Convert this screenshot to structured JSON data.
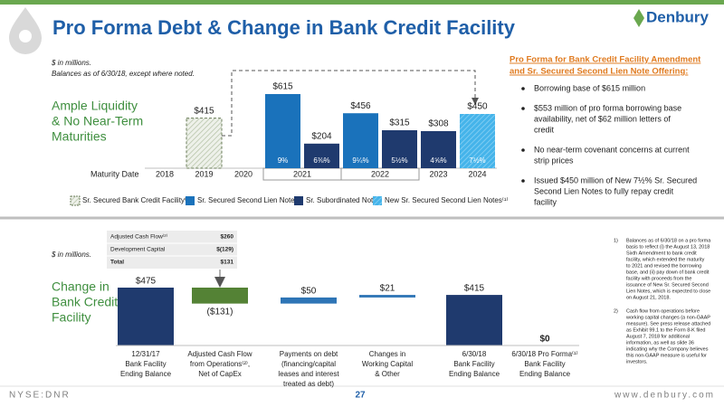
{
  "header": {
    "title": "Pro Forma Debt & Change in Bank Credit Facility",
    "logo": "Denbury",
    "ticker": "NYSE:DNR",
    "page": "27",
    "website": "www.denbury.com"
  },
  "chart_data": [
    {
      "type": "bar",
      "notes": [
        "$ in millions.",
        "Balances as of 6/30/18, except where noted."
      ],
      "side_label": [
        "Ample Liquidity",
        "& No Near-Term",
        "Maturities"
      ],
      "x_label": "Maturity Date",
      "categories": [
        "2018",
        "2019",
        "2020",
        "2021",
        "2022",
        "2023",
        "2024"
      ],
      "series": [
        {
          "name": "Sr. Secured Bank Credit Facility⁽¹⁾",
          "color": "#c9d3bd",
          "values": [
            null,
            415,
            null,
            null,
            null,
            null,
            null
          ],
          "value_labels": [
            null,
            "$415",
            null,
            null,
            null,
            null,
            null
          ]
        },
        {
          "name": "Sr. Secured Second Lien Notes",
          "color": "#1a72bb",
          "values": [
            null,
            null,
            null,
            615,
            456,
            null,
            null
          ],
          "value_labels": [
            null,
            null,
            null,
            "$615",
            "$456",
            null,
            null
          ],
          "rate_labels": [
            null,
            null,
            null,
            "9%",
            "9¼%",
            null,
            null
          ]
        },
        {
          "name": "Sr. Subordinated Notes",
          "color": "#1f3a6e",
          "values": [
            null,
            null,
            null,
            204,
            315,
            308,
            null
          ],
          "value_labels": [
            null,
            null,
            null,
            "$204",
            "$315",
            "$308",
            null
          ],
          "rate_labels": [
            null,
            null,
            null,
            "6⅜%",
            "5½%",
            "4⅝%",
            null
          ]
        },
        {
          "name": "New Sr. Secured Second Lien Notes⁽¹⁾",
          "color": "#45b4ea",
          "values": [
            null,
            null,
            null,
            null,
            null,
            null,
            450
          ],
          "value_labels": [
            null,
            null,
            null,
            null,
            null,
            null,
            "$450"
          ],
          "rate_labels": [
            null,
            null,
            null,
            null,
            null,
            null,
            "7½%"
          ]
        }
      ]
    },
    {
      "type": "waterfall",
      "notes": [
        "$ in millions."
      ],
      "side_label": [
        "Change in",
        "Bank Credit",
        "Facility"
      ],
      "categories": [
        [
          "12/31/17",
          "Bank Facility",
          "Ending Balance"
        ],
        [
          "Adjusted Cash Flow",
          "from Operations⁽²⁾,",
          "Net of CapEx"
        ],
        [
          "Payments on debt",
          "(financing/capital",
          "leases and interest",
          "treated as debt)"
        ],
        [
          "Changes in",
          "Working Capital",
          "& Other"
        ],
        [
          "6/30/18",
          "Bank Facility",
          "Ending Balance"
        ],
        [
          "6/30/18 Pro Forma⁽¹⁾",
          "Bank Facility",
          "Ending Balance"
        ]
      ],
      "kinds": [
        "total",
        "delta",
        "delta",
        "delta",
        "total",
        "total"
      ],
      "values": [
        475,
        -131,
        50,
        21,
        415,
        0
      ],
      "value_labels": [
        "$475",
        "($131)",
        "$50",
        "$21",
        "$415",
        "$0"
      ],
      "colors": {
        "total": "#1f3a6e",
        "decrease": "#548235",
        "increase": "#2e75b6"
      },
      "table": [
        [
          "Adjusted Cash Flow⁽²⁾",
          "$260"
        ],
        [
          "Development Capital",
          "$(129)"
        ],
        [
          "Total",
          "$131"
        ]
      ]
    }
  ],
  "sidebar": {
    "heading": [
      "Pro Forma for Bank Credit Facility Amendment",
      "and Sr. Secured Second Lien Note Offering:"
    ],
    "bullets": [
      [
        "Borrowing base of $615 million"
      ],
      [
        "$553 million of pro forma borrowing base",
        "availability, net of $62 million letters of",
        "credit"
      ],
      [
        "No near-term covenant concerns at current",
        "strip prices"
      ],
      [
        "Issued $450 million of New 7½% Sr. Secured",
        "Second Lien Notes to fully repay credit",
        "facility"
      ]
    ]
  },
  "footnotes": [
    {
      "num": "1)",
      "lines": [
        "Balances as of 6/30/18 on a pro forma",
        "basis to reflect (i) the August 13, 2018",
        "Sixth Amendment to bank credit",
        "facility, which extended the maturity",
        "to 2021 and revised the borrowing",
        "base, and (ii) pay down of bank credit",
        "facility with proceeds from the",
        "issuance of New Sr. Secured Second",
        "Lien Notes, which is expected to close",
        "on August 21, 2018."
      ]
    },
    {
      "num": "2)",
      "lines": [
        "Cash flow from operations before",
        "working capital changes (a non-GAAP",
        "measure).  See press release attached",
        "as Exhibit 99.1 to the Form 8-K filed",
        "August 7, 2018 for additional",
        "information, as well as slide 36",
        "indicating why the Company believes",
        "this non-GAAP measure is useful for",
        "investors."
      ]
    }
  ]
}
